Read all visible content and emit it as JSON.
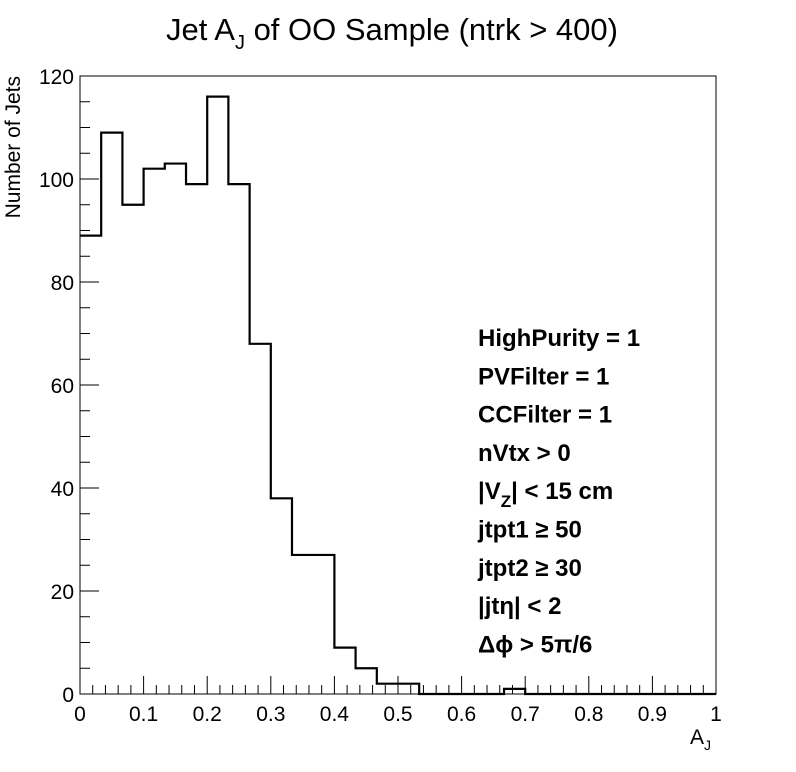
{
  "chart_data": {
    "type": "bar",
    "title": "Jet A_J of OO Sample (ntrk > 400)",
    "title_parts": {
      "pre": "Jet A",
      "sub": "J",
      "post": " of OO Sample (ntrk > 400)"
    },
    "xlabel": "A_J",
    "xlabel_parts": {
      "main": "A",
      "sub": "J"
    },
    "ylabel": "Number of Jets",
    "xlim": [
      0,
      1
    ],
    "ylim": [
      0,
      120
    ],
    "x_ticks": [
      "0",
      "0.1",
      "0.2",
      "0.3",
      "0.4",
      "0.5",
      "0.6",
      "0.7",
      "0.8",
      "0.9",
      "1"
    ],
    "y_ticks": [
      "0",
      "20",
      "40",
      "60",
      "80",
      "100",
      "120"
    ],
    "bin_edges": [
      0,
      0.0333,
      0.0667,
      0.1,
      0.1333,
      0.1667,
      0.2,
      0.2333,
      0.2667,
      0.3,
      0.3333,
      0.3667,
      0.4,
      0.4333,
      0.4667,
      0.5,
      0.5333,
      0.5667,
      0.6,
      0.6333,
      0.6667,
      0.7,
      0.7333,
      0.7667,
      0.8,
      0.8333,
      0.8667,
      0.9,
      0.9333,
      0.9667,
      1.0
    ],
    "values": [
      89,
      109,
      95,
      102,
      103,
      99,
      116,
      99,
      68,
      38,
      27,
      27,
      9,
      5,
      2,
      2,
      0,
      0,
      0,
      0,
      1,
      0,
      0,
      0,
      0,
      0,
      0,
      0,
      0,
      0
    ],
    "histogram_style": "step",
    "line_color": "#000000",
    "grid": false,
    "annotations": [
      "HighPurity = 1",
      "PVFilter = 1",
      "CCFilter = 1",
      "nVtx > 0",
      "|V_Z| < 15 cm",
      "jtpt1 ≥ 50",
      "jtpt2 ≥ 30",
      "|jtη| < 2",
      "Δϕ > 5π/6"
    ]
  }
}
